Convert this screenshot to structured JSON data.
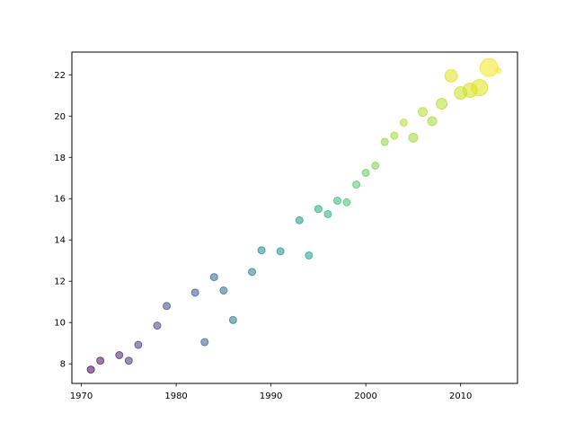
{
  "chart_data": {
    "type": "scatter",
    "title": "",
    "xlabel": "",
    "ylabel": "",
    "xlim": [
      1969,
      2016
    ],
    "ylim": [
      7.05,
      23.1
    ],
    "x_ticks": [
      1970,
      1980,
      1990,
      2000,
      2010
    ],
    "y_ticks": [
      8,
      10,
      12,
      14,
      16,
      18,
      20,
      22
    ],
    "x_tick_labels": [
      "1970",
      "1980",
      "1990",
      "2000",
      "2010"
    ],
    "y_tick_labels": [
      "8",
      "10",
      "12",
      "14",
      "16",
      "18",
      "20",
      "22"
    ],
    "grid": false,
    "legend": "none",
    "colormap": "viridis",
    "alpha": 0.55,
    "points": [
      {
        "x": 1971,
        "y": 7.72,
        "size": 4,
        "color": "#440154"
      },
      {
        "x": 1972,
        "y": 8.15,
        "size": 4,
        "color": "#471164"
      },
      {
        "x": 1974,
        "y": 8.42,
        "size": 4,
        "color": "#481f70"
      },
      {
        "x": 1975,
        "y": 8.15,
        "size": 4,
        "color": "#472d7b"
      },
      {
        "x": 1976,
        "y": 8.92,
        "size": 4,
        "color": "#443a83"
      },
      {
        "x": 1978,
        "y": 9.85,
        "size": 4,
        "color": "#414487"
      },
      {
        "x": 1979,
        "y": 10.8,
        "size": 4,
        "color": "#3e4c8a"
      },
      {
        "x": 1982,
        "y": 11.45,
        "size": 4,
        "color": "#39568c"
      },
      {
        "x": 1983,
        "y": 9.05,
        "size": 4,
        "color": "#355f8d"
      },
      {
        "x": 1984,
        "y": 12.2,
        "size": 4,
        "color": "#31688e"
      },
      {
        "x": 1985,
        "y": 11.55,
        "size": 4,
        "color": "#2d708e"
      },
      {
        "x": 1986,
        "y": 10.12,
        "size": 4,
        "color": "#2a788e"
      },
      {
        "x": 1988,
        "y": 12.45,
        "size": 4,
        "color": "#27808e"
      },
      {
        "x": 1989,
        "y": 13.5,
        "size": 4,
        "color": "#23888e"
      },
      {
        "x": 1991,
        "y": 13.45,
        "size": 4,
        "color": "#21918c"
      },
      {
        "x": 1993,
        "y": 14.95,
        "size": 4,
        "color": "#1f988b"
      },
      {
        "x": 1994,
        "y": 13.25,
        "size": 4,
        "color": "#1fa088"
      },
      {
        "x": 1995,
        "y": 15.5,
        "size": 4,
        "color": "#22a884"
      },
      {
        "x": 1996,
        "y": 15.25,
        "size": 4,
        "color": "#2ab07f"
      },
      {
        "x": 1997,
        "y": 15.9,
        "size": 4,
        "color": "#35b779"
      },
      {
        "x": 1998,
        "y": 15.82,
        "size": 4,
        "color": "#44bf70"
      },
      {
        "x": 1999,
        "y": 16.68,
        "size": 4,
        "color": "#54c568"
      },
      {
        "x": 2000,
        "y": 17.25,
        "size": 4,
        "color": "#65cb5e"
      },
      {
        "x": 2001,
        "y": 17.6,
        "size": 4,
        "color": "#7ad151"
      },
      {
        "x": 2002,
        "y": 18.75,
        "size": 4,
        "color": "#8ed645"
      },
      {
        "x": 2003,
        "y": 19.05,
        "size": 4,
        "color": "#a2da37"
      },
      {
        "x": 2004,
        "y": 19.68,
        "size": 4,
        "color": "#b5de2b"
      },
      {
        "x": 2005,
        "y": 18.95,
        "size": 5,
        "color": "#a2da37"
      },
      {
        "x": 2006,
        "y": 20.2,
        "size": 5,
        "color": "#b5de2b"
      },
      {
        "x": 2007,
        "y": 19.75,
        "size": 5,
        "color": "#a2da37"
      },
      {
        "x": 2008,
        "y": 20.6,
        "size": 6,
        "color": "#b5de2b"
      },
      {
        "x": 2009,
        "y": 21.95,
        "size": 7,
        "color": "#dde318"
      },
      {
        "x": 2010,
        "y": 21.12,
        "size": 7,
        "color": "#c8e020"
      },
      {
        "x": 2011,
        "y": 21.25,
        "size": 8,
        "color": "#d2e21b"
      },
      {
        "x": 2012,
        "y": 21.38,
        "size": 9,
        "color": "#dde318"
      },
      {
        "x": 2013,
        "y": 22.35,
        "size": 10,
        "color": "#f4e61e"
      },
      {
        "x": 2014,
        "y": 22.2,
        "size": 3,
        "color": "#fde725"
      }
    ]
  }
}
